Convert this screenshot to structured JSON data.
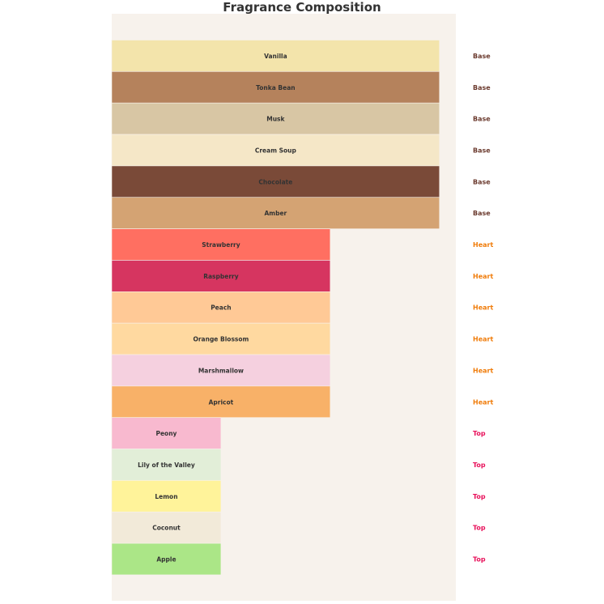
{
  "chart_data": {
    "type": "bar",
    "orientation": "horizontal",
    "title": "Fragrance Composition",
    "xlabel": "",
    "ylabel": "",
    "xlim": [
      0,
      3.15
    ],
    "grid": false,
    "background": "#f7f2ec",
    "categories": [
      "Vanilla",
      "Tonka Bean",
      "Musk",
      "Cream Soup",
      "Chocolate",
      "Amber",
      "Strawberry",
      "Raspberry",
      "Peach",
      "Orange Blossom",
      "Marshmallow",
      "Apricot",
      "Peony",
      "Lily of the Valley",
      "Lemon",
      "Coconut",
      "Apple"
    ],
    "values": [
      3,
      3,
      3,
      3,
      3,
      3,
      2,
      2,
      2,
      2,
      2,
      2,
      1,
      1,
      1,
      1,
      1
    ],
    "layers": [
      "Base",
      "Base",
      "Base",
      "Base",
      "Base",
      "Base",
      "Heart",
      "Heart",
      "Heart",
      "Heart",
      "Heart",
      "Heart",
      "Top",
      "Top",
      "Top",
      "Top",
      "Top"
    ],
    "colors": [
      "#f3e4ab",
      "#b5825c",
      "#d8c6a4",
      "#f5e7c7",
      "#7a4a38",
      "#d4a373",
      "#ff6f61",
      "#d63560",
      "#ffc996",
      "#ffd9a0",
      "#f5d0df",
      "#f8b168",
      "#f8b9cf",
      "#e2eed8",
      "#fff39a",
      "#f2ead9",
      "#abe687"
    ],
    "layer_colors": {
      "Base": "#6b3a2e",
      "Heart": "#f07c0a",
      "Top": "#e8105a"
    }
  }
}
